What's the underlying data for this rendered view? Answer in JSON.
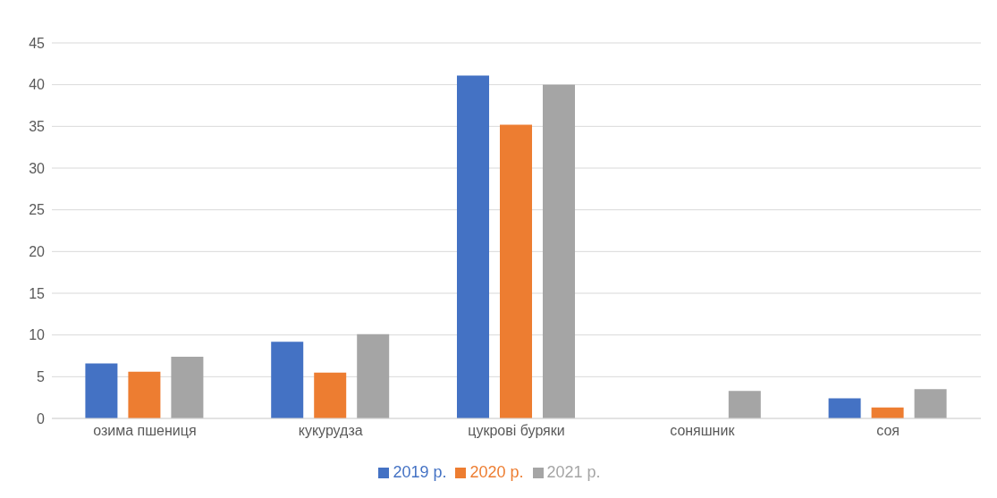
{
  "chart_data": {
    "type": "bar",
    "categories": [
      "озима пшениця",
      "кукурудза",
      "цукрові буряки",
      "соняшник",
      "соя"
    ],
    "series": [
      {
        "name": "2019 р.",
        "color": "#4472c4",
        "values": [
          6.6,
          9.2,
          41.1,
          null,
          2.4
        ]
      },
      {
        "name": "2020 р.",
        "color": "#ed7d31",
        "values": [
          5.6,
          5.5,
          35.2,
          null,
          1.3
        ]
      },
      {
        "name": "2021 р.",
        "color": "#a5a5a5",
        "values": [
          7.4,
          10.1,
          40.0,
          3.3,
          3.5
        ]
      }
    ],
    "ylim": [
      0,
      45
    ],
    "yticks": [
      0,
      5,
      10,
      15,
      20,
      25,
      30,
      35,
      40,
      45
    ],
    "grid": "y",
    "legend": "bottom"
  }
}
